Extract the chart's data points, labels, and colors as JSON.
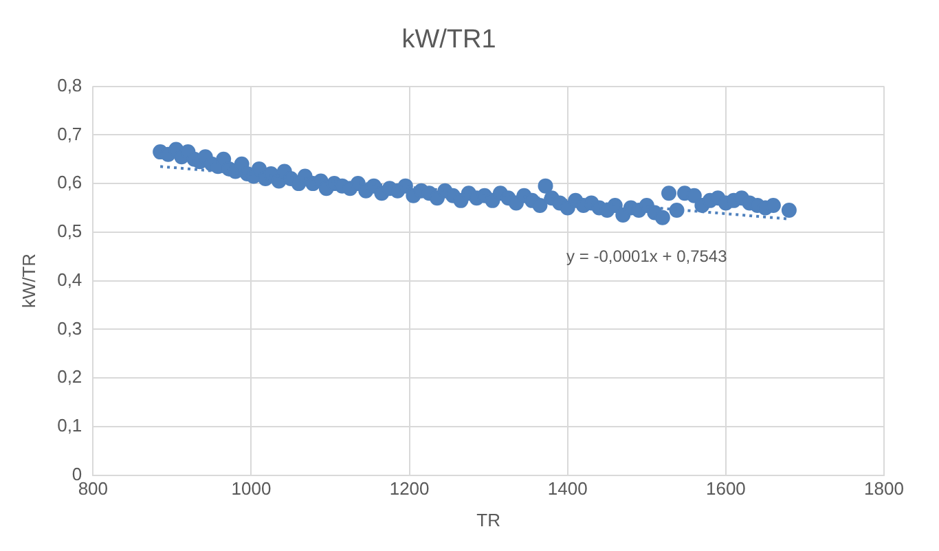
{
  "chart_data": {
    "type": "scatter",
    "title": "kW/TR1",
    "xlabel": "TR",
    "ylabel": "kW/TR",
    "xlim": [
      800,
      1800
    ],
    "xticks": [
      800,
      1000,
      1200,
      1400,
      1600,
      1800
    ],
    "ylim": [
      0,
      0.8
    ],
    "yticks": [
      {
        "value": 0,
        "label": "0"
      },
      {
        "value": 0.1,
        "label": "0,1"
      },
      {
        "value": 0.2,
        "label": "0,2"
      },
      {
        "value": 0.3,
        "label": "0,3"
      },
      {
        "value": 0.4,
        "label": "0,4"
      },
      {
        "value": 0.5,
        "label": "0,5"
      },
      {
        "value": 0.6,
        "label": "0,6"
      },
      {
        "value": 0.7,
        "label": "0,7"
      },
      {
        "value": 0.8,
        "label": "0,8"
      }
    ],
    "grid": true,
    "annotations": [
      "y = -0,0001x + 0,7543"
    ],
    "series": [
      {
        "type": "scatter",
        "color": "#4f81bd",
        "marker": "circle",
        "x": [
          885,
          895,
          905,
          912,
          920,
          928,
          935,
          942,
          950,
          958,
          965,
          972,
          980,
          988,
          995,
          1003,
          1010,
          1018,
          1025,
          1035,
          1042,
          1050,
          1060,
          1068,
          1078,
          1088,
          1095,
          1105,
          1115,
          1125,
          1135,
          1145,
          1155,
          1165,
          1175,
          1185,
          1195,
          1205,
          1215,
          1225,
          1235,
          1245,
          1255,
          1265,
          1275,
          1285,
          1295,
          1305,
          1315,
          1325,
          1335,
          1345,
          1355,
          1365,
          1372,
          1380,
          1390,
          1400,
          1410,
          1420,
          1430,
          1440,
          1450,
          1460,
          1470,
          1480,
          1490,
          1500,
          1510,
          1520,
          1528,
          1538,
          1548,
          1560,
          1570,
          1580,
          1590,
          1600,
          1610,
          1620,
          1630,
          1640,
          1650,
          1660,
          1680
        ],
        "values": [
          0.665,
          0.66,
          0.67,
          0.655,
          0.665,
          0.65,
          0.645,
          0.655,
          0.64,
          0.635,
          0.65,
          0.63,
          0.625,
          0.64,
          0.62,
          0.615,
          0.63,
          0.61,
          0.62,
          0.605,
          0.625,
          0.61,
          0.6,
          0.615,
          0.6,
          0.605,
          0.59,
          0.6,
          0.595,
          0.59,
          0.6,
          0.585,
          0.595,
          0.58,
          0.59,
          0.585,
          0.595,
          0.575,
          0.585,
          0.58,
          0.57,
          0.585,
          0.575,
          0.565,
          0.58,
          0.57,
          0.575,
          0.565,
          0.58,
          0.57,
          0.56,
          0.575,
          0.565,
          0.555,
          0.595,
          0.57,
          0.56,
          0.55,
          0.565,
          0.555,
          0.56,
          0.55,
          0.545,
          0.555,
          0.535,
          0.55,
          0.545,
          0.555,
          0.54,
          0.53,
          0.58,
          0.545,
          0.58,
          0.575,
          0.555,
          0.565,
          0.57,
          0.56,
          0.565,
          0.57,
          0.56,
          0.555,
          0.55,
          0.555,
          0.545
        ]
      },
      {
        "type": "line",
        "color": "#4f81bd",
        "marker": "none",
        "line_style": "dotted",
        "x": [
          885,
          1680
        ],
        "values": [
          0.635,
          0.527
        ]
      }
    ]
  }
}
